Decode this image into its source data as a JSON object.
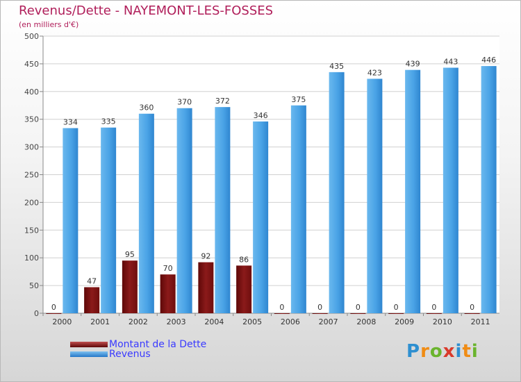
{
  "chart_data": {
    "type": "bar",
    "title": "Revenus/Dette - NAYEMONT-LES-FOSSES",
    "ylabel": "(en milliers d'€)",
    "xlabel": "",
    "categories": [
      "2000",
      "2001",
      "2002",
      "2003",
      "2004",
      "2005",
      "2006",
      "2007",
      "2008",
      "2009",
      "2010",
      "2011"
    ],
    "series": [
      {
        "name": "Montant de la Dette",
        "color": "#8b1a1a",
        "values": [
          0,
          47,
          95,
          70,
          92,
          86,
          0,
          0,
          0,
          0,
          0,
          0
        ]
      },
      {
        "name": "Revenus",
        "color": "#4aa3e6",
        "values": [
          334,
          335,
          360,
          370,
          372,
          346,
          375,
          435,
          423,
          439,
          443,
          446
        ]
      }
    ],
    "ylim": [
      0,
      500
    ],
    "yticks": [
      0,
      50,
      100,
      150,
      200,
      250,
      300,
      350,
      400,
      450,
      500
    ],
    "grid": true,
    "legend": "bottom-left"
  },
  "logo": {
    "letters": [
      "P",
      "r",
      "o",
      "x",
      "i",
      "t",
      "i"
    ],
    "colors": [
      "#2e8fd0",
      "#f08c14",
      "#6ab42d",
      "#d93a2b",
      "#2e8fd0",
      "#f08c14",
      "#6ab42d"
    ]
  }
}
